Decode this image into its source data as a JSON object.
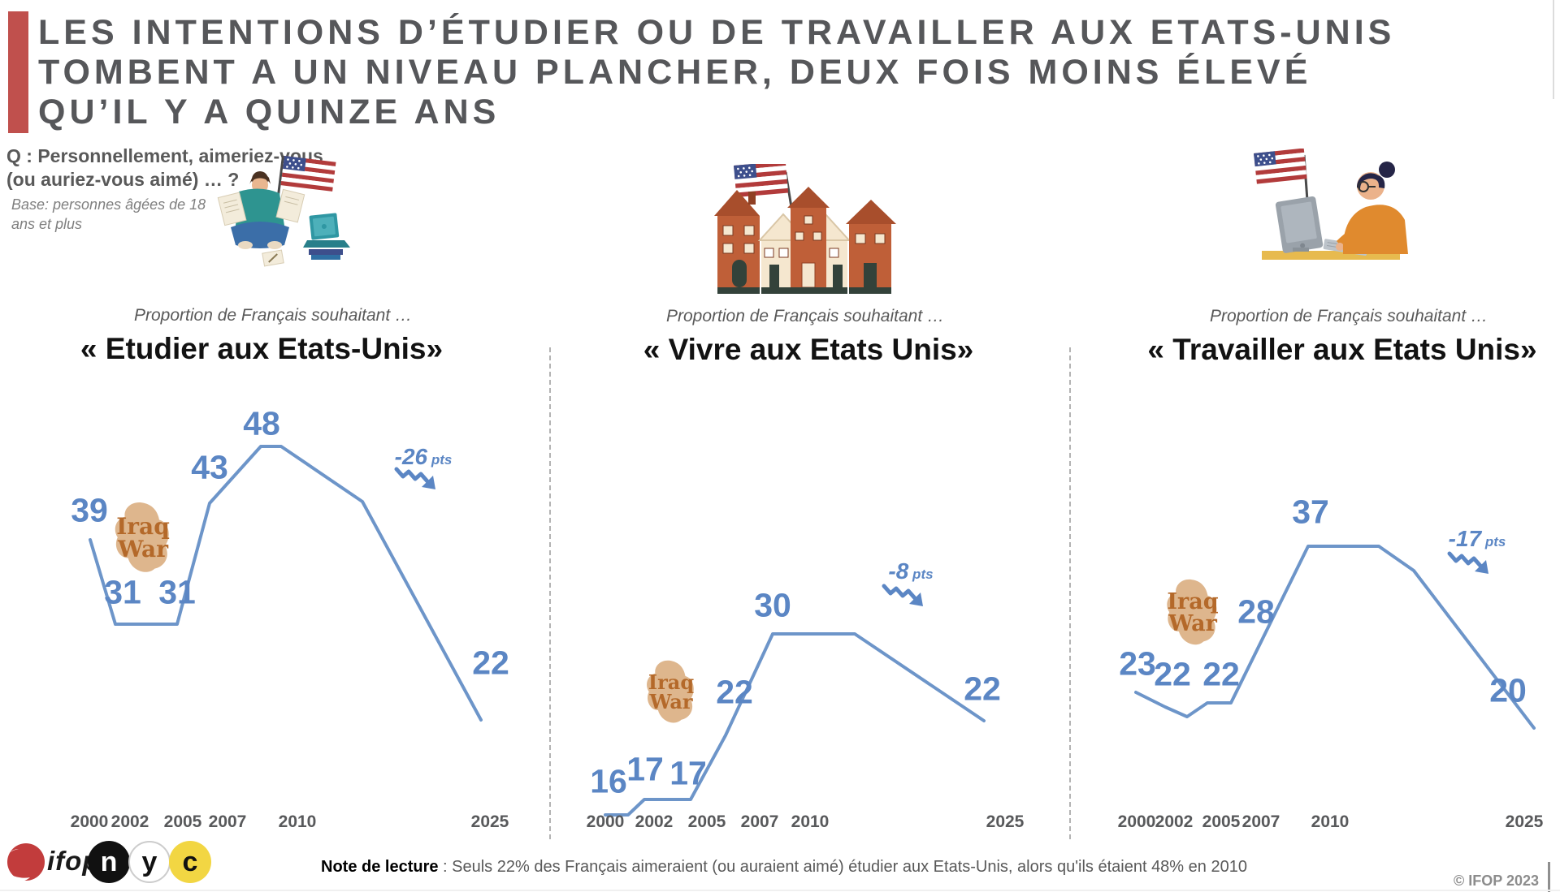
{
  "header": {
    "accent_color": "#C0504D",
    "title_lines": [
      "LES INTENTIONS D’ÉTUDIER OU DE TRAVAILLER AUX ETATS-UNIS",
      "TOMBENT A UN NIVEAU PLANCHER, DEUX FOIS MOINS ÉLEVÉ",
      "QU’IL Y A QUINZE ANS"
    ],
    "question_lines": [
      "Q : Personnellement, aimeriez-vous",
      "(ou auriez-vous aimé) … ?"
    ],
    "base_lines": [
      "Base: personnes âgées de 18",
      "ans et plus"
    ]
  },
  "colors": {
    "line_blue": "#6D95C9",
    "label_blue": "#5B86C4",
    "iraq_text": "#B4692A",
    "iraq_blob": "#DCB287",
    "title_gray": "#56575A",
    "year_gray": "#58595B",
    "accent_red": "#C0504D",
    "logo_yellow": "#F2D643"
  },
  "icons": {
    "chart_illustrations": [
      "student-reading-us-flag-illustration",
      "american-houses-us-flag-illustration",
      "woman-laptop-us-flag-illustration"
    ],
    "change_arrow": "zigzag-down-right-arrow"
  },
  "chart_data": [
    {
      "id": "etudier",
      "type": "line",
      "subtitle": "Proportion de Français souhaitant …",
      "title": "« Etudier aux Etats-Unis»",
      "x": [
        "2000",
        "2002",
        "2005",
        "2007",
        "2010",
        "2025"
      ],
      "values": [
        39,
        31,
        31,
        43,
        48,
        22
      ],
      "series_color": "#6D95C9",
      "ylim": [
        10,
        55
      ],
      "grid": false,
      "annotations": {
        "event_lines": [
          "Iraq",
          "War"
        ],
        "change_label": "-26",
        "change_unit": " pts"
      }
    },
    {
      "id": "vivre",
      "type": "line",
      "subtitle": "Proportion de Français souhaitant …",
      "title": "« Vivre aux Etats Unis»",
      "x": [
        "2000",
        "2002",
        "2005",
        "2007",
        "2010",
        "2025"
      ],
      "values": [
        16,
        17,
        17,
        22,
        30,
        22
      ],
      "series_color": "#6D95C9",
      "ylim": [
        10,
        55
      ],
      "grid": false,
      "annotations": {
        "event_lines": [
          "Iraq",
          "War"
        ],
        "change_label": "-8",
        "change_unit": " pts"
      }
    },
    {
      "id": "travailler",
      "type": "line",
      "subtitle": "Proportion de Français souhaitant …",
      "title": "« Travailler aux Etats Unis»",
      "x": [
        "2000",
        "2002",
        "2005",
        "2007",
        "2010",
        "2025"
      ],
      "values": [
        23,
        22,
        22,
        28,
        37,
        20
      ],
      "series_color": "#6D95C9",
      "ylim": [
        10,
        55
      ],
      "grid": false,
      "annotations": {
        "event_lines": [
          "Iraq",
          "War"
        ],
        "change_label": "-17",
        "change_unit": " pts"
      }
    }
  ],
  "footer": {
    "logos": {
      "ifop_text": "ifop",
      "nyc": [
        "n",
        "y",
        "c"
      ]
    },
    "note_label": "Note de lecture",
    "note_text": " : Seuls 22% des Français aimeraient (ou auraient aimé) étudier aux Etats-Unis, alors qu'ils étaient 48% en 2010",
    "copyright": "© IFOP 2023"
  }
}
